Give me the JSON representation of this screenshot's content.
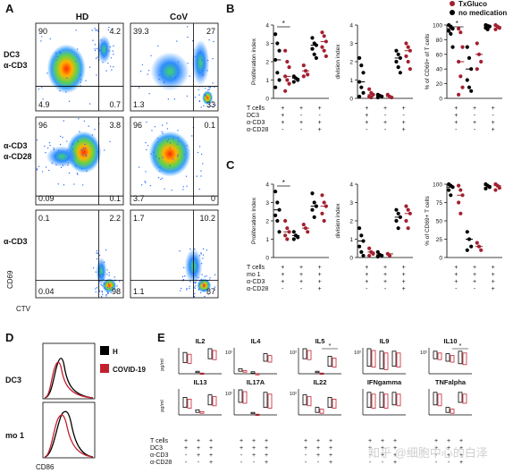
{
  "panelA": {
    "label": "A",
    "col_headers": [
      "HD",
      "CoV"
    ],
    "row_labels": [
      [
        "DC3",
        "α-CD3"
      ],
      [
        "α-CD3",
        "α-CD28"
      ],
      [
        "α-CD3"
      ]
    ],
    "y_axis_label": "CD69",
    "x_axis_label": "CTV",
    "plots": [
      {
        "q": [
          "90",
          "4.2",
          "4.9",
          "0.7"
        ]
      },
      {
        "q": [
          "39.3",
          "27",
          "1.3",
          "33"
        ]
      },
      {
        "q": [
          "96",
          "3.8",
          "0.09",
          "0.1"
        ]
      },
      {
        "q": [
          "96",
          "0.1",
          "3.7",
          "0"
        ]
      },
      {
        "q": [
          "0.1",
          "2.2",
          "0.04",
          "98"
        ]
      },
      {
        "q": [
          "1.7",
          "10.2",
          "1.1",
          "87"
        ]
      }
    ]
  },
  "legend": {
    "txgluco": "TxGluco",
    "no_med": "no medication",
    "txgluco_color": "#a3202f",
    "no_med_color": "#000000"
  },
  "panelB": {
    "label": "B",
    "charts": [
      {
        "ylabel": "Proliferation index",
        "yticks": [
          "0",
          "1",
          "2",
          "3",
          "4"
        ],
        "ymax": 4,
        "star": "*",
        "groups": [
          {
            "k": [
              3.5,
              3.0,
              2.6,
              2.1,
              1.4,
              1.0,
              0.6
            ],
            "r": [
              2.6,
              2.0,
              1.7,
              1.2,
              1.0,
              0.8,
              0.4
            ]
          },
          {
            "k": [
              1.2,
              1.1,
              1.0,
              0.9
            ],
            "r": [
              1.8,
              1.5,
              1.3,
              1.2
            ]
          },
          {
            "k": [
              3.3,
              3.0,
              2.9,
              2.7,
              2.4,
              2.2
            ],
            "r": [
              3.6,
              3.4,
              3.1,
              2.8,
              2.6,
              2.3
            ]
          }
        ]
      },
      {
        "ylabel": "division index",
        "yticks": [
          "0",
          "1",
          "2",
          "3",
          "4"
        ],
        "ymax": 4,
        "star": "",
        "groups": [
          {
            "k": [
              2.2,
              1.8,
              1.4,
              0.9,
              0.6,
              0.3,
              0.1
            ],
            "r": [
              0.5,
              0.3,
              0.2,
              0.1,
              0.05
            ]
          },
          {
            "k": [
              0.2,
              0.15,
              0.1,
              0.05
            ],
            "r": [
              0.2,
              0.1,
              0.05
            ]
          },
          {
            "k": [
              2.6,
              2.4,
              2.2,
              2.0,
              1.7,
              1.4
            ],
            "r": [
              3.0,
              2.8,
              2.6,
              2.3,
              2.0,
              1.6
            ]
          }
        ]
      },
      {
        "ylabel": "% of CD69+ of T cells",
        "yticks": [
          "0",
          "20",
          "40",
          "60",
          "80",
          "100"
        ],
        "ymax": 100,
        "star": "*",
        "groups": [
          {
            "k": [
              100,
              98,
              95,
              92,
              88,
              70
            ],
            "r": [
              95,
              90,
              70,
              50,
              30,
              15,
              5
            ]
          },
          {
            "k": [
              70,
              55,
              40,
              25,
              15,
              10
            ],
            "r": [
              75,
              60,
              50,
              40
            ]
          },
          {
            "k": [
              100,
              99,
              98,
              96,
              94
            ],
            "r": [
              100,
              98,
              96,
              94
            ]
          }
        ]
      }
    ],
    "cond_labels": [
      "T cells",
      "DC3",
      "α-CD3",
      "α-CD28"
    ],
    "signs": [
      [
        "+",
        "+",
        "+"
      ],
      [
        "+",
        "-",
        "-"
      ],
      [
        "+",
        "+",
        "+"
      ],
      [
        "-",
        "-",
        "+"
      ]
    ]
  },
  "panelC": {
    "label": "C",
    "charts": [
      {
        "ylabel": "Proliferation index",
        "yticks": [
          "0",
          "1",
          "2",
          "3",
          "4"
        ],
        "ymax": 4,
        "star": "*",
        "groups": [
          {
            "k": [
              3.6,
              3.0,
              2.6,
              2.3,
              2.0,
              1.4
            ],
            "r": [
              2.0,
              1.6,
              1.4,
              1.2,
              1.0
            ]
          },
          {
            "k": [
              1.4,
              1.2,
              1.1,
              1.0
            ],
            "r": [
              1.8,
              1.6,
              1.4
            ]
          },
          {
            "k": [
              3.5,
              3.0,
              2.8,
              2.6,
              2.2
            ],
            "r": [
              3.4,
              3.0,
              2.8,
              2.4,
              2.0
            ]
          }
        ]
      },
      {
        "ylabel": "division index",
        "yticks": [
          "0",
          "1",
          "2",
          "3",
          "4"
        ],
        "ymax": 4,
        "star": "",
        "groups": [
          {
            "k": [
              1.6,
              1.2,
              0.9,
              0.6,
              0.3,
              0.1
            ],
            "r": [
              0.5,
              0.3,
              0.2,
              0.1
            ]
          },
          {
            "k": [
              0.3,
              0.15,
              0.1,
              0.05
            ],
            "r": [
              0.2,
              0.1
            ]
          },
          {
            "k": [
              2.6,
              2.4,
              2.2,
              2.0,
              1.6
            ],
            "r": [
              2.8,
              2.6,
              2.4,
              2.0,
              1.6
            ]
          }
        ]
      },
      {
        "ylabel": "% of CD69+ T cells",
        "yticks": [
          "0",
          "25",
          "50",
          "75",
          "100"
        ],
        "ymax": 100,
        "star": "",
        "groups": [
          {
            "k": [
              100,
              98,
              96,
              92,
              85
            ],
            "r": [
              98,
              92,
              85,
              75,
              60
            ]
          },
          {
            "k": [
              35,
              25,
              15,
              10
            ],
            "r": [
              20,
              15,
              10
            ]
          },
          {
            "k": [
              100,
              98,
              96,
              94
            ],
            "r": [
              100,
              98,
              95,
              92
            ]
          }
        ]
      }
    ],
    "cond_labels": [
      "T cells",
      "mo 1",
      "α-CD3",
      "α-CD28"
    ],
    "signs": [
      [
        "+",
        "+",
        "+"
      ],
      [
        "+",
        "+",
        "+"
      ],
      [
        "+",
        "+",
        "+"
      ],
      [
        "-",
        "-",
        "+"
      ]
    ]
  },
  "panelD": {
    "label": "D",
    "legend": [
      {
        "text": "H",
        "color": "#000000"
      },
      {
        "text": "COVID-19",
        "color": "#c3202f"
      }
    ],
    "rows": [
      "DC3",
      "mo 1"
    ],
    "x_axis_label": "CD86"
  },
  "panelE": {
    "label": "E",
    "unit": "pg/ml",
    "cytokines": [
      {
        "name": "IL2",
        "ytick": "",
        "star": ""
      },
      {
        "name": "IL4",
        "ytick": "10²",
        "star": ""
      },
      {
        "name": "IL5",
        "ytick": "10²",
        "star": "*"
      },
      {
        "name": "IL9",
        "ytick": "10²",
        "star": ""
      },
      {
        "name": "IL10",
        "ytick": "10²",
        "star": "*"
      },
      {
        "name": "IL13",
        "ytick": "",
        "star": ""
      },
      {
        "name": "IL17A",
        "ytick": "10²",
        "star": ""
      },
      {
        "name": "IL22",
        "ytick": "10²",
        "star": ""
      },
      {
        "name": "IFNgamma",
        "ytick": "",
        "star": ""
      },
      {
        "name": "TNFalpha",
        "ytick": "",
        "star": ""
      }
    ],
    "cond_labels": [
      "T cells",
      "DC3",
      "α-CD3",
      "α-CD28"
    ],
    "signs": [
      [
        "+",
        "+",
        "+"
      ],
      [
        "+",
        "+",
        "+"
      ],
      [
        "-",
        "+",
        "+"
      ],
      [
        "-",
        "-",
        "+"
      ]
    ]
  },
  "watermark": "知乎 @细胞中心的白泽"
}
